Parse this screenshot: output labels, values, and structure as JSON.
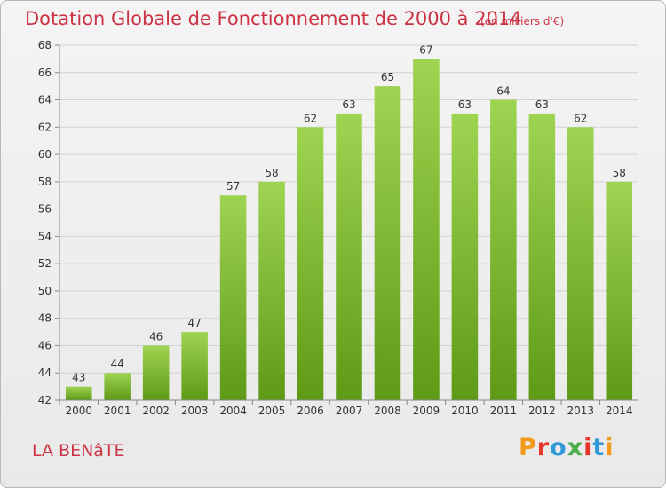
{
  "header": {
    "title": "Dotation Globale de Fonctionnement de 2000 à 2014",
    "unit_note": "(en milliers d'€)"
  },
  "footer": {
    "commune": "LA BENâTE",
    "logo_text": "Proxiti",
    "logo_colors": [
      "#f39a1d",
      "#e8342a",
      "#2f9ad7",
      "#4cae4c",
      "#e8342a",
      "#2f9ad7",
      "#f39a1d"
    ]
  },
  "chart_data": {
    "type": "bar",
    "title": "Dotation Globale de Fonctionnement de 2000 à 2014",
    "subtitle": "(en milliers d'€)",
    "xlabel": "",
    "ylabel": "",
    "categories": [
      "2000",
      "2001",
      "2002",
      "2003",
      "2004",
      "2005",
      "2006",
      "2007",
      "2008",
      "2009",
      "2010",
      "2011",
      "2012",
      "2013",
      "2014"
    ],
    "values": [
      43,
      44,
      46,
      47,
      57,
      58,
      62,
      63,
      65,
      67,
      63,
      64,
      63,
      62,
      58
    ],
    "ylim": [
      42,
      68
    ],
    "yticks": [
      42,
      44,
      46,
      48,
      50,
      52,
      54,
      56,
      58,
      60,
      62,
      64,
      66,
      68
    ],
    "grid": true,
    "bar_color_top": "#9ed451",
    "bar_color_bottom": "#5e9a16"
  }
}
